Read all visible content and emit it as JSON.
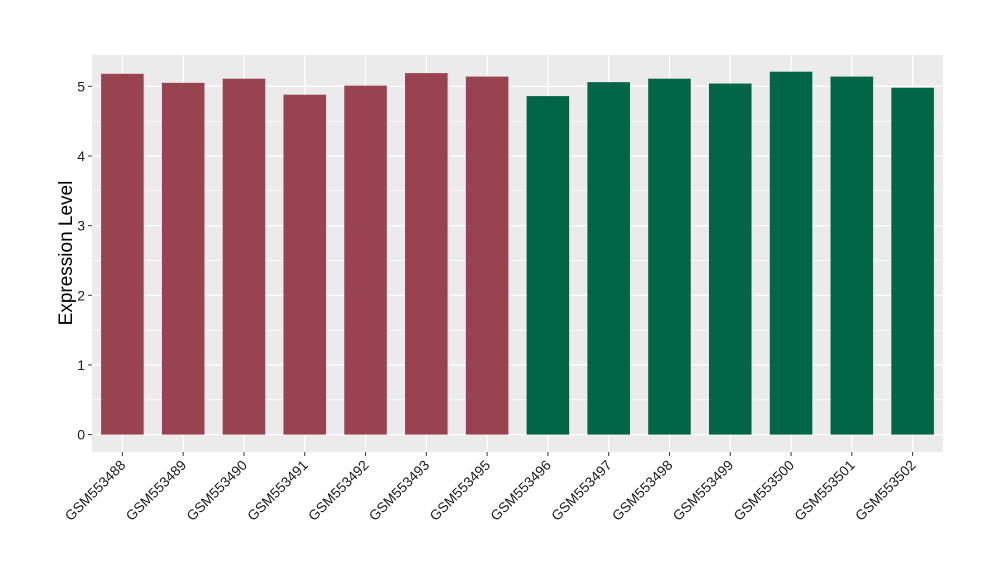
{
  "chart_data": {
    "type": "bar",
    "title": "",
    "xlabel": "",
    "ylabel": "Expression Level",
    "ylim": [
      -0.25,
      5.45
    ],
    "yticks": [
      0,
      1,
      2,
      3,
      4,
      5
    ],
    "grid": true,
    "legend": "none",
    "categories": [
      "GSM553488",
      "GSM553489",
      "GSM553490",
      "GSM553491",
      "GSM553492",
      "GSM553493",
      "GSM553495",
      "GSM553496",
      "GSM553497",
      "GSM553498",
      "GSM553499",
      "GSM553500",
      "GSM553501",
      "GSM553502"
    ],
    "values": [
      5.18,
      5.05,
      5.11,
      4.88,
      5.01,
      5.19,
      5.14,
      4.86,
      5.06,
      5.11,
      5.04,
      5.21,
      5.14,
      4.98
    ],
    "groups": [
      "group1",
      "group1",
      "group1",
      "group1",
      "group1",
      "group1",
      "group1",
      "group2",
      "group2",
      "group2",
      "group2",
      "group2",
      "group2",
      "group2"
    ],
    "group_colors": {
      "group1": "#9A4350",
      "group2": "#006645"
    },
    "panel_color": "#EBEBEB",
    "gridline_color": "#FFFFFF"
  }
}
